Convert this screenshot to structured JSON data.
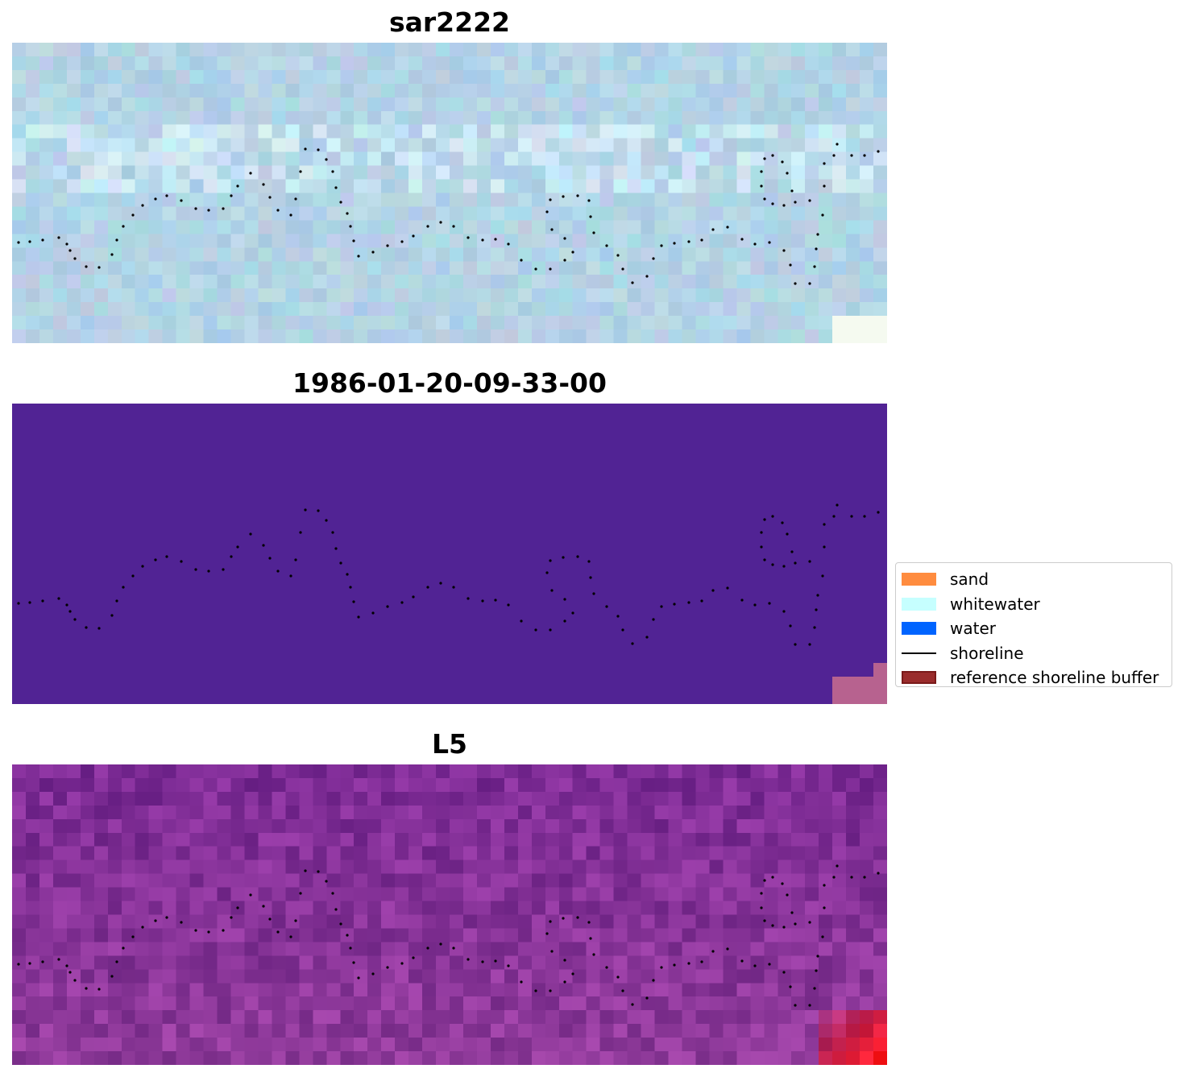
{
  "panels": [
    {
      "id": "sar",
      "title": "sar2222",
      "base_color": "#b4d4e6"
    },
    {
      "id": "class",
      "title": "1986-01-20-09-33-00",
      "base_color": "#512394"
    },
    {
      "id": "l5",
      "title": "L5",
      "base_color": "#7e2c96"
    }
  ],
  "legend": {
    "items": [
      {
        "label": "sand",
        "kind": "patch",
        "color": "#ff8c3f",
        "edge": "#ff8c3f"
      },
      {
        "label": "whitewater",
        "kind": "patch",
        "color": "#c6ffff",
        "edge": "#c6ffff"
      },
      {
        "label": "water",
        "kind": "patch",
        "color": "#0064ff",
        "edge": "#0064ff"
      },
      {
        "label": "shoreline",
        "kind": "line",
        "color": "#000000"
      },
      {
        "label": "reference shoreline buffer",
        "kind": "patch",
        "color": "#9a2c2c",
        "edge": "#7a1a1a"
      }
    ]
  }
}
